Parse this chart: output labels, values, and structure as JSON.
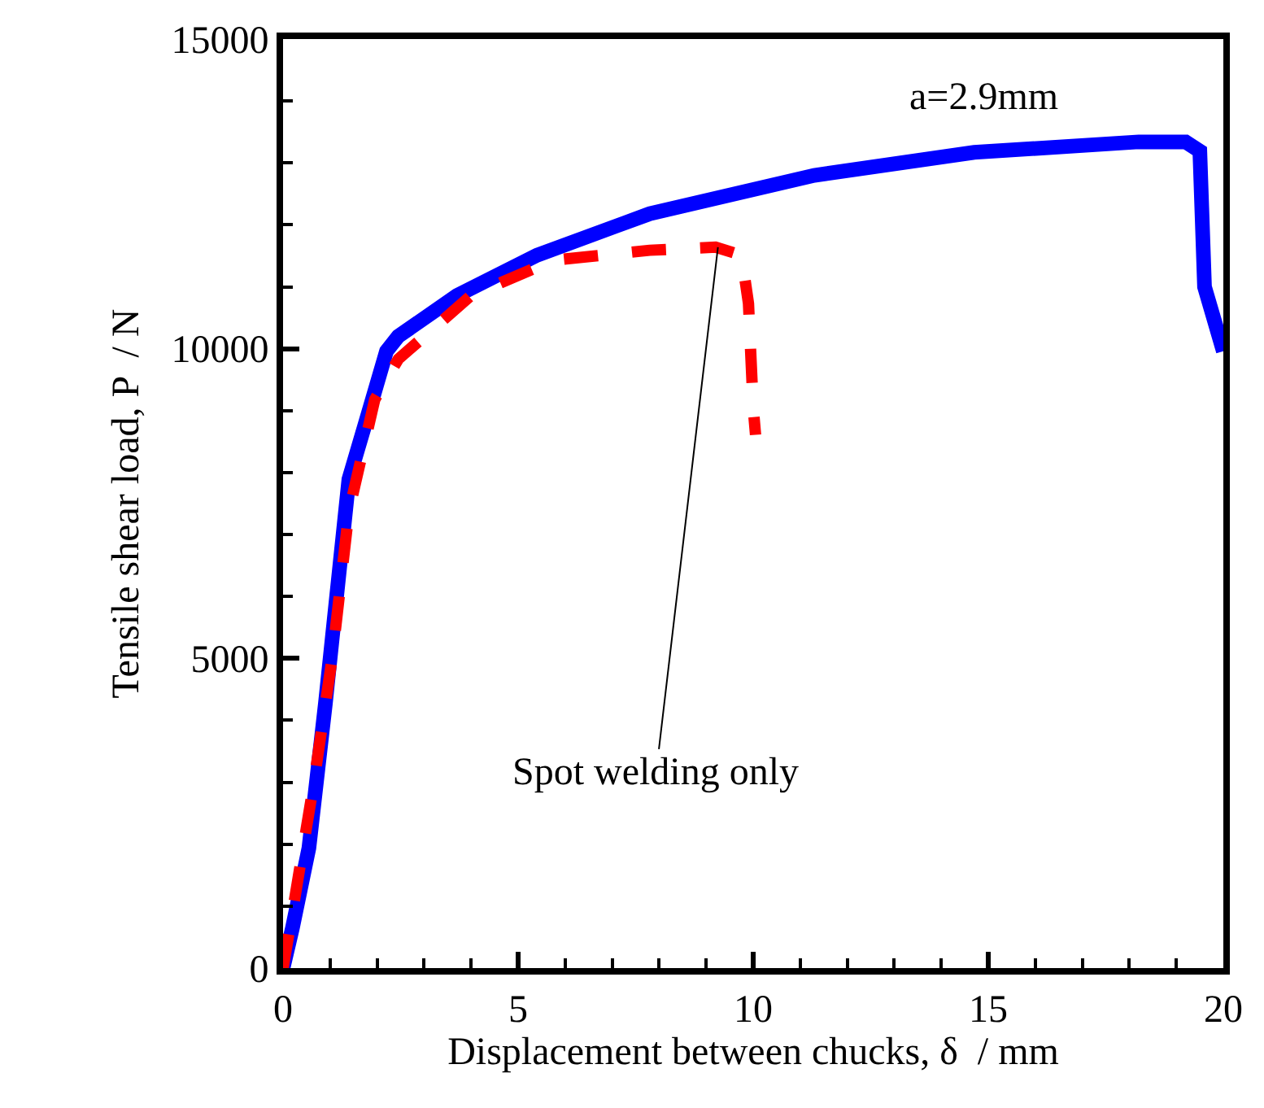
{
  "chart_data": {
    "type": "line",
    "xlabel": "Displacement between chucks, δ  / mm",
    "ylabel": "Tensile shear load, P  / N",
    "xlim": [
      0,
      20
    ],
    "xticks": [
      0,
      5,
      10,
      15,
      20
    ],
    "ylim": [
      0,
      15000
    ],
    "yticks": [
      0,
      5000,
      10000,
      15000
    ],
    "series": [
      {
        "color": "#0000ff",
        "line_style": "solid",
        "x": [
          0,
          0.2,
          0.55,
          0.9,
          1.4,
          1.9,
          2.2,
          2.45,
          3.7,
          5.4,
          7.8,
          11.3,
          14.7,
          18.2,
          19.2,
          19.5,
          19.6,
          20
        ],
        "values": [
          0,
          650,
          1940,
          4270,
          7890,
          9180,
          9960,
          10200,
          10860,
          11510,
          12180,
          12800,
          13170,
          13340,
          13340,
          13190,
          11000,
          9960
        ]
      },
      {
        "color": "#ff0000",
        "line_style": "dashed",
        "x": [
          0,
          0.2,
          0.65,
          1.05,
          1.4,
          1.95,
          2.45,
          4,
          5.75,
          7.8,
          9.2,
          9.75,
          9.9,
          10,
          10.05
        ],
        "values": [
          0,
          900,
          2970,
          5040,
          7370,
          9180,
          9830,
          10860,
          11430,
          11590,
          11640,
          11510,
          10730,
          9050,
          8610
        ]
      }
    ],
    "annotations": [
      "a=2.9mm",
      {
        "text": "Spot welding only",
        "x": 9.25,
        "y": 11640
      }
    ]
  }
}
